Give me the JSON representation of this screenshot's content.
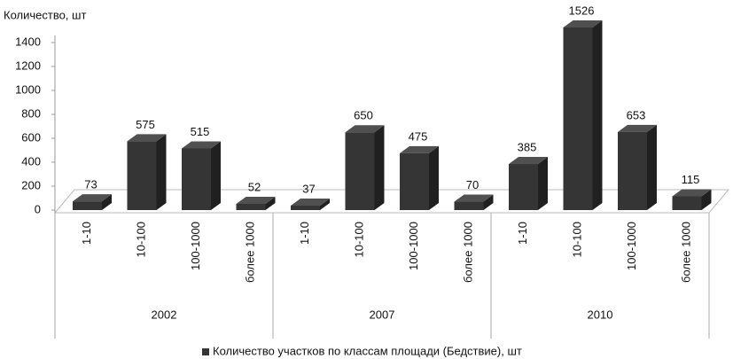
{
  "chart_data": {
    "type": "bar3d",
    "y_label": "Количество, шт",
    "categories": [
      "1-10",
      "10-100",
      "100-1000",
      "более 1000",
      "1-10",
      "10-100",
      "100-1000",
      "более 1000",
      "1-10",
      "10-100",
      "100-1000",
      "более 1000"
    ],
    "groups": [
      "2002",
      "2007",
      "2010"
    ],
    "series": [
      {
        "name": "Количество участков по классам площади (Бедствие), шт",
        "color": "#353535",
        "values": [
          73,
          575,
          515,
          52,
          37,
          650,
          475,
          70,
          385,
          1526,
          653,
          115
        ]
      }
    ],
    "ylim": [
      0,
      1400
    ],
    "yticks": [
      0,
      200,
      400,
      600,
      800,
      1000,
      1200,
      1400
    ],
    "legend": "bottom"
  }
}
